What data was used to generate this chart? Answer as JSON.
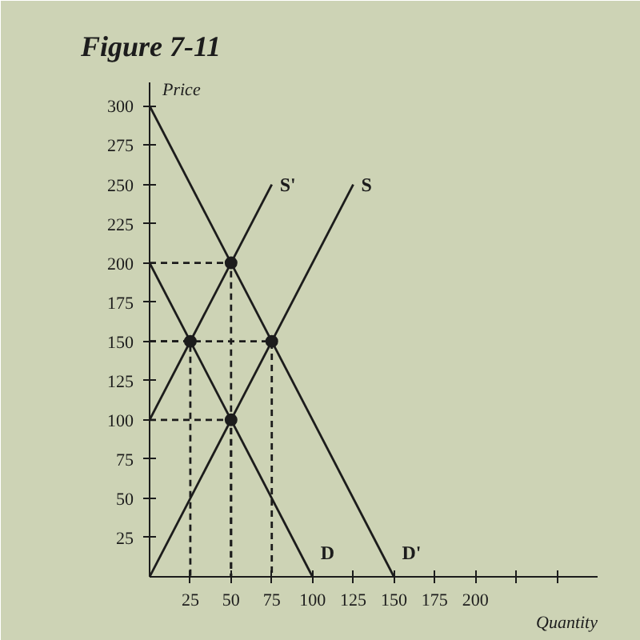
{
  "chart_data": {
    "type": "line",
    "title": "Figure 7-11",
    "xlabel": "Quantity",
    "ylabel": "Price",
    "xlim": [
      0,
      275
    ],
    "ylim": [
      0,
      315
    ],
    "xticks": [
      25,
      50,
      75,
      100,
      125,
      150,
      175,
      200,
      {
        "value": 225,
        "label": null
      },
      {
        "value": 250,
        "label": null
      }
    ],
    "yticks": [
      25,
      50,
      75,
      100,
      125,
      150,
      175,
      200,
      225,
      250,
      275,
      300
    ],
    "series": [
      {
        "name": "D",
        "color": "#1c1c1c",
        "line_style": "solid",
        "x": [
          0,
          100
        ],
        "values": [
          200,
          0
        ]
      },
      {
        "name": "D'",
        "color": "#1c1c1c",
        "line_style": "solid",
        "x": [
          0,
          150
        ],
        "values": [
          300,
          0
        ]
      },
      {
        "name": "S",
        "color": "#1c1c1c",
        "line_style": "solid",
        "x": [
          0,
          125
        ],
        "values": [
          0,
          250
        ]
      },
      {
        "name": "S'",
        "color": "#1c1c1c",
        "line_style": "solid",
        "x": [
          0,
          75
        ],
        "values": [
          100,
          250
        ]
      },
      {
        "color": "#1c1c1c",
        "line_style": "dashed",
        "x": [
          0,
          25,
          25
        ],
        "values": [
          150,
          150,
          0
        ]
      },
      {
        "color": "#1c1c1c",
        "line_style": "dashed",
        "x": [
          0,
          50,
          50
        ],
        "values": [
          200,
          200,
          0
        ]
      },
      {
        "color": "#1c1c1c",
        "line_style": "dashed",
        "x": [
          0,
          50,
          50
        ],
        "values": [
          100,
          100,
          0
        ]
      },
      {
        "color": "#1c1c1c",
        "line_style": "dashed",
        "x": [
          0,
          75,
          75
        ],
        "values": [
          150,
          150,
          0
        ]
      },
      {
        "type": "scatter",
        "color": "#1c1c1c",
        "marker": "circle",
        "x": [
          25,
          50,
          50,
          75
        ],
        "values": [
          150,
          200,
          100,
          150
        ]
      }
    ]
  }
}
